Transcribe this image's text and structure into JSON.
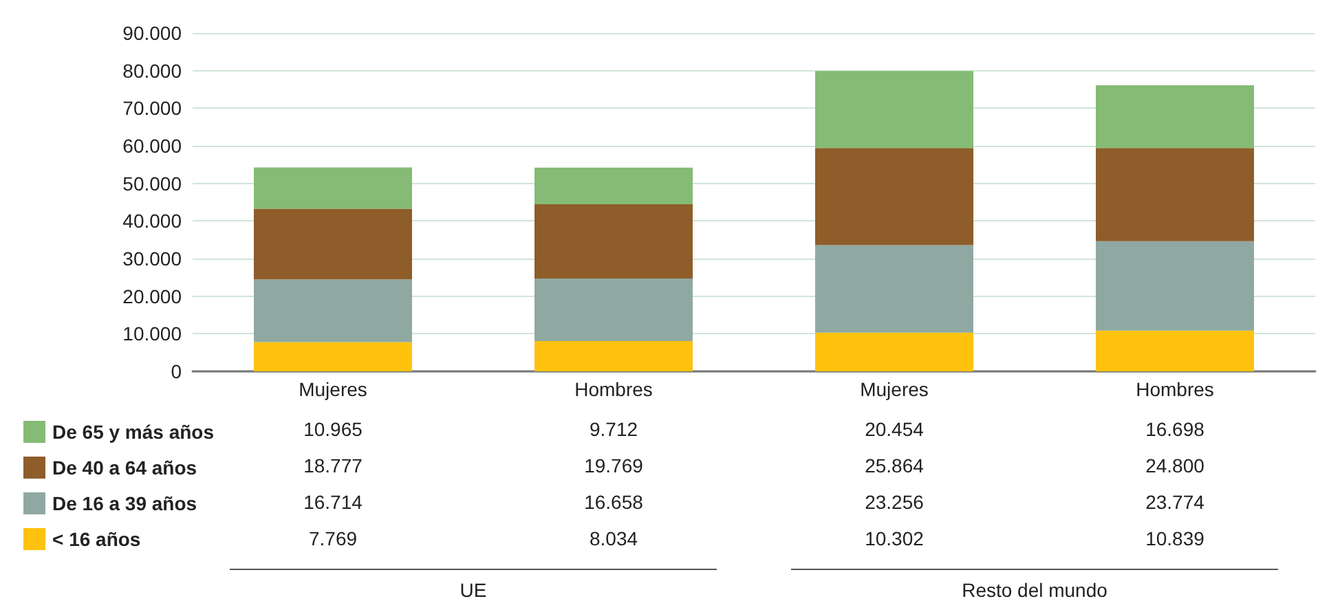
{
  "chart_data": {
    "type": "bar",
    "stacked": true,
    "categories": [
      "Mujeres",
      "Hombres",
      "Mujeres",
      "Hombres"
    ],
    "ylim": [
      0,
      90000
    ],
    "yticks": [
      {
        "value": 0,
        "label": "0"
      },
      {
        "value": 10000,
        "label": "10.000"
      },
      {
        "value": 20000,
        "label": "20.000"
      },
      {
        "value": 30000,
        "label": "30.000"
      },
      {
        "value": 40000,
        "label": "40.000"
      },
      {
        "value": 50000,
        "label": "50.000"
      },
      {
        "value": 60000,
        "label": "60.000"
      },
      {
        "value": 70000,
        "label": "70.000"
      },
      {
        "value": 80000,
        "label": "80.000"
      },
      {
        "value": 90000,
        "label": "90.000"
      }
    ],
    "grid": "y",
    "legend": "bottom left",
    "series": [
      {
        "name": "< 16 años",
        "color": "#ffc20e",
        "values": [
          7769,
          8034,
          10302,
          10839
        ],
        "value_labels": [
          "7.769",
          "8.034",
          "10.302",
          "10.839"
        ]
      },
      {
        "name": "De 16 a 39 años",
        "color": "#8fa9a2",
        "values": [
          16714,
          16658,
          23256,
          23774
        ],
        "value_labels": [
          "16.714",
          "16.658",
          "23.256",
          "23.774"
        ]
      },
      {
        "name": "De 40 a 64 años",
        "color": "#8e5d2a",
        "values": [
          18777,
          19769,
          25864,
          24800
        ],
        "value_labels": [
          "18.777",
          "19.769",
          "25.864",
          "24.800"
        ]
      },
      {
        "name": "De 65 y más años",
        "color": "#85bb74",
        "values": [
          10965,
          9712,
          20454,
          16698
        ],
        "value_labels": [
          "10.965",
          "9.712",
          "20.454",
          "16.698"
        ]
      }
    ],
    "annotations": [
      "UE",
      "Resto del mundo"
    ]
  }
}
